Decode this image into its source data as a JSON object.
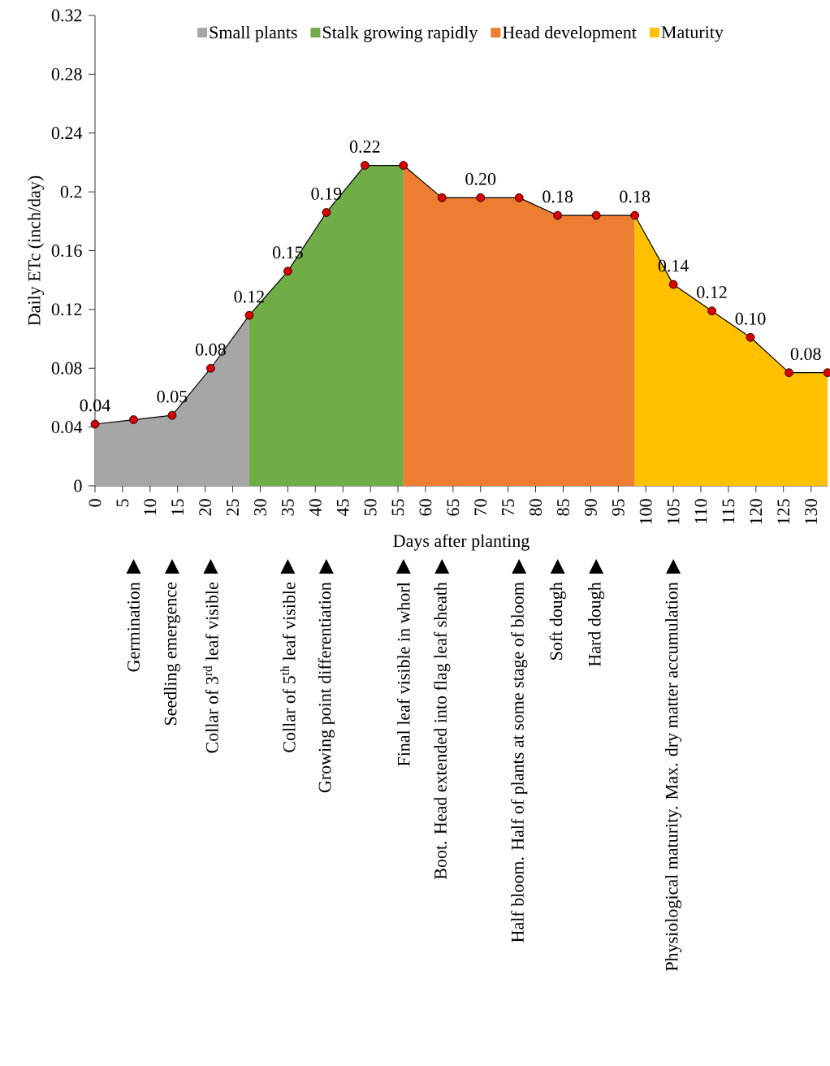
{
  "chart_data": {
    "type": "area",
    "xlabel": "Days after planting",
    "ylabel": "Daily ETc (inch/day)",
    "xlim": [
      0,
      133
    ],
    "xticks": [
      0,
      5,
      10,
      15,
      20,
      25,
      30,
      35,
      40,
      45,
      50,
      55,
      60,
      65,
      70,
      75,
      80,
      85,
      90,
      95,
      100,
      105,
      110,
      115,
      120,
      125,
      130
    ],
    "ylim": [
      0,
      0.32
    ],
    "yticks": [
      0,
      0.04,
      0.08,
      0.12,
      0.16,
      0.2,
      0.24,
      0.28,
      0.32
    ],
    "legend": "top",
    "grid": false,
    "series": [
      {
        "name": "Small plants",
        "color": "#a6a6a6",
        "x": [
          0,
          7,
          14,
          21,
          28
        ],
        "values": [
          0.042,
          0.045,
          0.048,
          0.08,
          0.116
        ]
      },
      {
        "name": "Stalk growing rapidly",
        "color": "#70ad47",
        "x": [
          28,
          35,
          42,
          49,
          56
        ],
        "values": [
          0.116,
          0.146,
          0.186,
          0.218,
          0.218
        ]
      },
      {
        "name": "Head development",
        "color": "#ed7d31",
        "x": [
          56,
          63,
          70,
          77,
          84,
          91,
          98
        ],
        "values": [
          0.218,
          0.196,
          0.196,
          0.196,
          0.184,
          0.184,
          0.184
        ]
      },
      {
        "name": "Maturity",
        "color": "#ffc000",
        "x": [
          98,
          105,
          112,
          119,
          126,
          133
        ],
        "values": [
          0.184,
          0.137,
          0.119,
          0.101,
          0.077,
          0.077
        ]
      },
      {
        "type": "line",
        "color": "#000000",
        "marker": "circle",
        "line_style": "solid",
        "x": [
          0,
          7,
          14,
          21,
          28,
          35,
          42,
          49,
          56,
          63,
          70,
          77,
          84,
          91,
          98,
          105,
          112,
          119,
          126,
          133
        ],
        "values": [
          0.042,
          0.045,
          0.048,
          0.08,
          0.116,
          0.146,
          0.186,
          0.218,
          0.218,
          0.196,
          0.196,
          0.196,
          0.184,
          0.184,
          0.184,
          0.137,
          0.119,
          0.101,
          0.077,
          0.077
        ],
        "value_labels": [
          "0.04",
          null,
          "0.05",
          "0.08",
          "0.12",
          "0.15",
          "0.19",
          "0.22",
          null,
          null,
          "0.20",
          null,
          "0.18",
          null,
          "0.18",
          "0.14",
          "0.12",
          "0.10",
          null,
          "0.08"
        ]
      }
    ],
    "annotations": [
      "Germination",
      "Seedling emergence",
      "Collar of 3$^{rd}$ leaf visible",
      "Collar of 5$^{th}$ leaf visible",
      "Growing point differentiation",
      "Final leaf visible in whorl",
      "Boot. Head extended into flag leaf sheath",
      "Half bloom. Half of plants at some stage of bloom",
      "Soft dough",
      "Hard dough",
      "Physiological maturity. Max. dry matter accumulation"
    ]
  }
}
